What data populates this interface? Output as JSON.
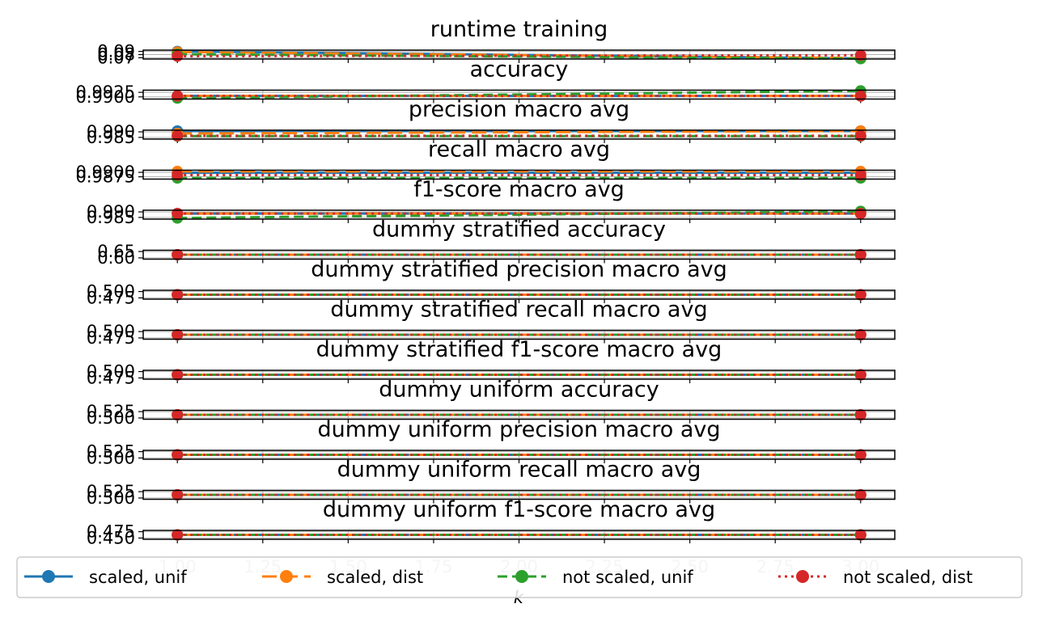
{
  "chart_data": {
    "type": "line",
    "xlabel": "k",
    "x": [
      1,
      3
    ],
    "x_ticks": [
      "1.00",
      "1.25",
      "1.50",
      "1.75",
      "2.00",
      "2.25",
      "2.50",
      "2.75",
      "3.00"
    ],
    "xlim": [
      0.9,
      3.1
    ],
    "legend_placement": "bottom-center",
    "series_styles": [
      {
        "name": "scaled, unif",
        "color": "#1f77b4",
        "dash": ""
      },
      {
        "name": "scaled, dist",
        "color": "#ff7f0e",
        "dash": "18 8"
      },
      {
        "name": "not scaled, unif",
        "color": "#2ca02c",
        "dash": "12 6"
      },
      {
        "name": "not scaled, dist",
        "color": "#d62728",
        "dash": "3 5"
      }
    ],
    "panels": [
      {
        "title": "runtime training",
        "yticks": [
          "0.09",
          "0.08",
          "0.07"
        ],
        "ylim": [
          0.066,
          0.094
        ],
        "series": [
          {
            "name": "scaled, unif",
            "values": [
              0.09,
              0.068
            ]
          },
          {
            "name": "scaled, dist",
            "values": [
              0.088,
              0.069
            ]
          },
          {
            "name": "not scaled, unif",
            "values": [
              0.081,
              0.067
            ]
          },
          {
            "name": "not scaled, dist",
            "values": [
              0.075,
              0.078
            ]
          }
        ]
      },
      {
        "title": "accuracy",
        "yticks": [
          "0.9925",
          "0.9900"
        ],
        "ylim": [
          0.9888,
          0.9937
        ],
        "series": [
          {
            "name": "scaled, unif",
            "values": [
              0.9905,
              0.9905
            ]
          },
          {
            "name": "scaled, dist",
            "values": [
              0.9905,
              0.9905
            ]
          },
          {
            "name": "not scaled, unif",
            "values": [
              0.9893,
              0.9933
            ]
          },
          {
            "name": "not scaled, dist",
            "values": [
              0.9905,
              0.9905
            ]
          }
        ]
      },
      {
        "title": "precision macro avg",
        "yticks": [
          "0.990",
          "0.985"
        ],
        "ylim": [
          0.9835,
          0.9915
        ],
        "series": [
          {
            "name": "scaled, unif",
            "values": [
              0.9908,
              0.9908
            ]
          },
          {
            "name": "scaled, dist",
            "values": [
              0.9885,
              0.9908
            ]
          },
          {
            "name": "not scaled, unif",
            "values": [
              0.9862,
              0.9862
            ]
          },
          {
            "name": "not scaled, dist",
            "values": [
              0.9865,
              0.9865
            ]
          }
        ]
      },
      {
        "title": "recall macro avg",
        "yticks": [
          "0.9900",
          "0.9875"
        ],
        "ylim": [
          0.9862,
          0.9912
        ],
        "series": [
          {
            "name": "scaled, unif",
            "values": [
              0.9898,
              0.9898
            ]
          },
          {
            "name": "scaled, dist",
            "values": [
              0.9905,
              0.9905
            ]
          },
          {
            "name": "not scaled, unif",
            "values": [
              0.9868,
              0.9868
            ]
          },
          {
            "name": "not scaled, dist",
            "values": [
              0.9885,
              0.9885
            ]
          }
        ]
      },
      {
        "title": "f1-score macro avg",
        "yticks": [
          "0.990",
          "0.985"
        ],
        "ylim": [
          0.9835,
          0.9915
        ],
        "series": [
          {
            "name": "scaled, unif",
            "values": [
              0.9885,
              0.9885
            ]
          },
          {
            "name": "scaled, dist",
            "values": [
              0.9885,
              0.9885
            ]
          },
          {
            "name": "not scaled, unif",
            "values": [
              0.9845,
              0.9905
            ]
          },
          {
            "name": "not scaled, dist",
            "values": [
              0.9885,
              0.9885
            ]
          }
        ]
      },
      {
        "title": "dummy stratified accuracy",
        "yticks": [
          "0.65",
          "0.60"
        ],
        "ylim": [
          0.59,
          0.66
        ],
        "series": [
          {
            "name": "scaled, unif",
            "values": [
              0.625,
              0.625
            ]
          },
          {
            "name": "scaled, dist",
            "values": [
              0.625,
              0.625
            ]
          },
          {
            "name": "not scaled, unif",
            "values": [
              0.625,
              0.625
            ]
          },
          {
            "name": "not scaled, dist",
            "values": [
              0.625,
              0.625
            ]
          }
        ]
      },
      {
        "title": "dummy stratified precision macro avg",
        "yticks": [
          "0.500",
          "0.475"
        ],
        "ylim": [
          0.47,
          0.505
        ],
        "series": [
          {
            "name": "scaled, unif",
            "values": [
              0.4875,
              0.4875
            ]
          },
          {
            "name": "scaled, dist",
            "values": [
              0.4875,
              0.4875
            ]
          },
          {
            "name": "not scaled, unif",
            "values": [
              0.4875,
              0.4875
            ]
          },
          {
            "name": "not scaled, dist",
            "values": [
              0.4875,
              0.4875
            ]
          }
        ]
      },
      {
        "title": "dummy stratified recall macro avg",
        "yticks": [
          "0.500",
          "0.475"
        ],
        "ylim": [
          0.47,
          0.505
        ],
        "series": [
          {
            "name": "scaled, unif",
            "values": [
              0.4875,
              0.4875
            ]
          },
          {
            "name": "scaled, dist",
            "values": [
              0.4875,
              0.4875
            ]
          },
          {
            "name": "not scaled, unif",
            "values": [
              0.4875,
              0.4875
            ]
          },
          {
            "name": "not scaled, dist",
            "values": [
              0.4875,
              0.4875
            ]
          }
        ]
      },
      {
        "title": "dummy stratified f1-score macro avg",
        "yticks": [
          "0.500",
          "0.475"
        ],
        "ylim": [
          0.47,
          0.505
        ],
        "series": [
          {
            "name": "scaled, unif",
            "values": [
              0.4875,
              0.4875
            ]
          },
          {
            "name": "scaled, dist",
            "values": [
              0.4875,
              0.4875
            ]
          },
          {
            "name": "not scaled, unif",
            "values": [
              0.4875,
              0.4875
            ]
          },
          {
            "name": "not scaled, dist",
            "values": [
              0.4875,
              0.4875
            ]
          }
        ]
      },
      {
        "title": "dummy uniform accuracy",
        "yticks": [
          "0.525",
          "0.500"
        ],
        "ylim": [
          0.495,
          0.53
        ],
        "series": [
          {
            "name": "scaled, unif",
            "values": [
              0.5125,
              0.5125
            ]
          },
          {
            "name": "scaled, dist",
            "values": [
              0.5125,
              0.5125
            ]
          },
          {
            "name": "not scaled, unif",
            "values": [
              0.5125,
              0.5125
            ]
          },
          {
            "name": "not scaled, dist",
            "values": [
              0.5125,
              0.5125
            ]
          }
        ]
      },
      {
        "title": "dummy uniform precision macro avg",
        "yticks": [
          "0.525",
          "0.500"
        ],
        "ylim": [
          0.495,
          0.53
        ],
        "series": [
          {
            "name": "scaled, unif",
            "values": [
              0.5125,
              0.5125
            ]
          },
          {
            "name": "scaled, dist",
            "values": [
              0.5125,
              0.5125
            ]
          },
          {
            "name": "not scaled, unif",
            "values": [
              0.5125,
              0.5125
            ]
          },
          {
            "name": "not scaled, dist",
            "values": [
              0.5125,
              0.5125
            ]
          }
        ]
      },
      {
        "title": "dummy uniform recall macro avg",
        "yticks": [
          "0.525",
          "0.500"
        ],
        "ylim": [
          0.495,
          0.53
        ],
        "series": [
          {
            "name": "scaled, unif",
            "values": [
              0.5125,
              0.5125
            ]
          },
          {
            "name": "scaled, dist",
            "values": [
              0.5125,
              0.5125
            ]
          },
          {
            "name": "not scaled, unif",
            "values": [
              0.5125,
              0.5125
            ]
          },
          {
            "name": "not scaled, dist",
            "values": [
              0.5125,
              0.5125
            ]
          }
        ]
      },
      {
        "title": "dummy uniform f1-score macro avg",
        "yticks": [
          "0.475",
          "0.450"
        ],
        "ylim": [
          0.445,
          0.48
        ],
        "series": [
          {
            "name": "scaled, unif",
            "values": [
              0.4625,
              0.4625
            ]
          },
          {
            "name": "scaled, dist",
            "values": [
              0.4625,
              0.4625
            ]
          },
          {
            "name": "not scaled, unif",
            "values": [
              0.4625,
              0.4625
            ]
          },
          {
            "name": "not scaled, dist",
            "values": [
              0.4625,
              0.4625
            ]
          }
        ]
      }
    ]
  }
}
